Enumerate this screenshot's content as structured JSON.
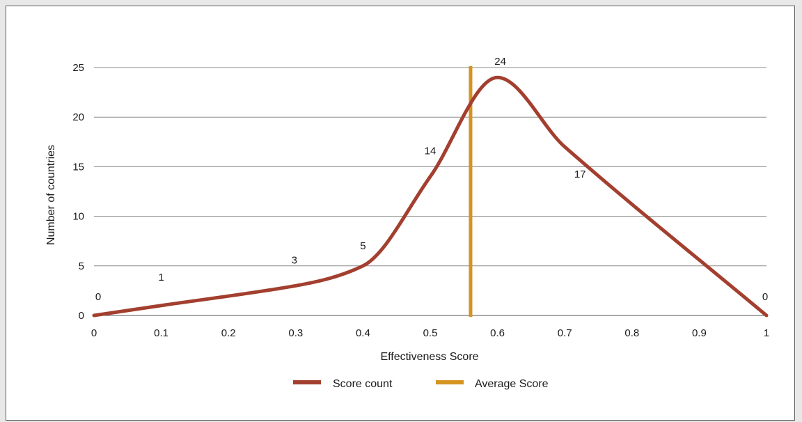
{
  "chart_data": {
    "type": "line",
    "xlabel": "Effectiveness Score",
    "ylabel": "Number of countries",
    "xlim": [
      0,
      1
    ],
    "ylim": [
      0,
      25
    ],
    "x_ticks": [
      0,
      0.1,
      0.2,
      0.3,
      0.4,
      0.5,
      0.6,
      0.7,
      0.8,
      0.9,
      1
    ],
    "y_ticks": [
      0,
      5,
      10,
      15,
      20,
      25
    ],
    "grid": "horizontal",
    "legend_position": "bottom",
    "series": [
      {
        "name": "Score count",
        "color": "#a33f2f",
        "x": [
          0,
          0.1,
          0.3,
          0.4,
          0.5,
          0.6,
          0.7,
          1
        ],
        "y": [
          0,
          1,
          3,
          5,
          14,
          24,
          17,
          0
        ],
        "labels": [
          "0",
          "1",
          "3",
          "5",
          "14",
          "24",
          "17",
          "0"
        ]
      },
      {
        "name": "Average Score",
        "color": "#d4941f",
        "type": "vertical-line",
        "x": 0.56
      }
    ]
  }
}
